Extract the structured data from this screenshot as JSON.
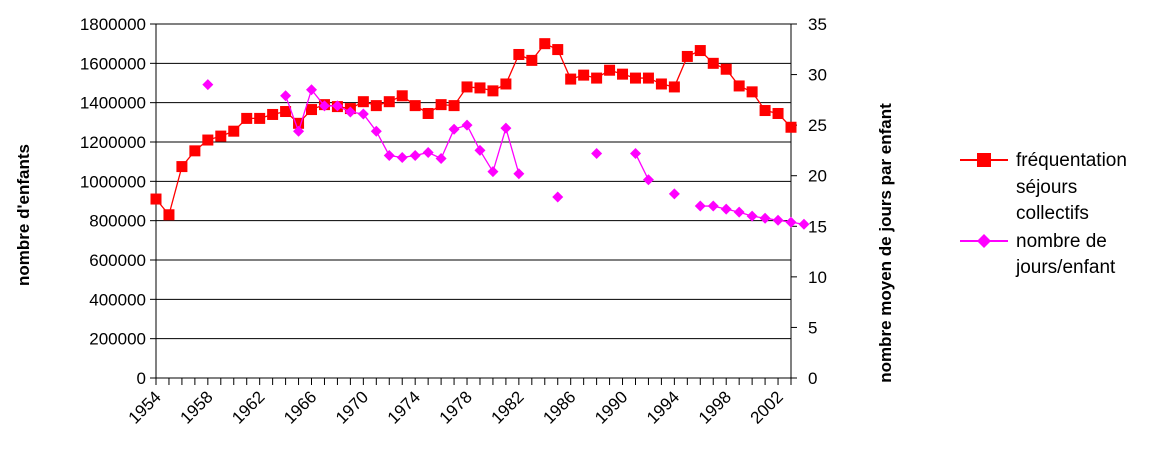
{
  "chart_data": {
    "type": "line",
    "x": [
      1954,
      1955,
      1956,
      1957,
      1958,
      1959,
      1960,
      1961,
      1962,
      1963,
      1964,
      1965,
      1966,
      1967,
      1968,
      1969,
      1970,
      1971,
      1972,
      1973,
      1974,
      1975,
      1976,
      1977,
      1978,
      1979,
      1980,
      1981,
      1982,
      1983,
      1984,
      1985,
      1986,
      1987,
      1988,
      1989,
      1990,
      1991,
      1992,
      1993,
      1994,
      1995,
      1996,
      1997,
      1998,
      1999,
      2000,
      2001,
      2002,
      2003
    ],
    "x_tick_labels": [
      "1954",
      "1958",
      "1962",
      "1966",
      "1970",
      "1974",
      "1978",
      "1982",
      "1986",
      "1990",
      "1994",
      "1998",
      "2002"
    ],
    "x_tick_values": [
      1954,
      1958,
      1962,
      1966,
      1970,
      1974,
      1978,
      1982,
      1986,
      1990,
      1994,
      1998,
      2002
    ],
    "xlim": [
      1954,
      2003
    ],
    "y_left": {
      "label": "nombre d'enfants",
      "lim": [
        0,
        1800000
      ],
      "ticks": [
        0,
        200000,
        400000,
        600000,
        800000,
        1000000,
        1200000,
        1400000,
        1600000,
        1800000
      ],
      "tick_labels": [
        "0",
        "200000",
        "400000",
        "600000",
        "800000",
        "1000000",
        "1200000",
        "1400000",
        "1600000",
        "1800000"
      ]
    },
    "y_right": {
      "label": "nombre moyen de jours par enfant",
      "lim": [
        0,
        35
      ],
      "ticks": [
        0,
        5,
        10,
        15,
        20,
        25,
        30,
        35
      ],
      "tick_labels": [
        "0",
        "5",
        "10",
        "15",
        "20",
        "25",
        "30",
        "35"
      ]
    },
    "grid": "horizontal",
    "legend_position": "right",
    "series": [
      {
        "name": "fréquentation séjours collectifs",
        "axis": "left",
        "color": "#ff0000",
        "marker": "square",
        "points": [
          [
            1954,
            910000
          ],
          [
            1955,
            830000
          ],
          [
            1956,
            1075000
          ],
          [
            1957,
            1155000
          ],
          [
            1958,
            1210000
          ],
          [
            1959,
            1230000
          ],
          [
            1960,
            1255000
          ],
          [
            1961,
            1320000
          ],
          [
            1962,
            1320000
          ],
          [
            1963,
            1340000
          ],
          [
            1964,
            1355000
          ],
          [
            1965,
            1295000
          ],
          [
            1966,
            1365000
          ],
          [
            1967,
            1390000
          ],
          [
            1968,
            1380000
          ],
          [
            1969,
            1370000
          ],
          [
            1970,
            1405000
          ],
          [
            1971,
            1385000
          ],
          [
            1972,
            1405000
          ],
          [
            1973,
            1435000
          ],
          [
            1974,
            1385000
          ],
          [
            1975,
            1345000
          ],
          [
            1976,
            1390000
          ],
          [
            1977,
            1385000
          ],
          [
            1978,
            1480000
          ],
          [
            1979,
            1475000
          ],
          [
            1980,
            1460000
          ],
          [
            1981,
            1495000
          ],
          [
            1982,
            1645000
          ],
          [
            1983,
            1615000
          ],
          [
            1984,
            1700000
          ],
          [
            1985,
            1670000
          ],
          [
            1986,
            1520000
          ],
          [
            1987,
            1540000
          ],
          [
            1988,
            1525000
          ],
          [
            1989,
            1565000
          ],
          [
            1990,
            1545000
          ],
          [
            1991,
            1525000
          ],
          [
            1992,
            1525000
          ],
          [
            1993,
            1495000
          ],
          [
            1994,
            1480000
          ],
          [
            1995,
            1635000
          ],
          [
            1996,
            1665000
          ],
          [
            1997,
            1600000
          ],
          [
            1998,
            1570000
          ],
          [
            1999,
            1485000
          ],
          [
            2000,
            1455000
          ],
          [
            2001,
            1360000
          ],
          [
            2002,
            1345000
          ],
          [
            2003,
            1275000
          ]
        ]
      },
      {
        "name": "nombre de jours/enfant",
        "axis": "right",
        "color": "#ff00ff",
        "marker": "diamond",
        "segments": [
          [
            [
              1958,
              29.0
            ]
          ],
          [
            [
              1964,
              27.9
            ],
            [
              1965,
              24.4
            ],
            [
              1966,
              28.5
            ],
            [
              1967,
              26.9
            ],
            [
              1968,
              26.9
            ],
            [
              1969,
              26.3
            ],
            [
              1970,
              26.1
            ],
            [
              1971,
              24.4
            ],
            [
              1972,
              22.0
            ],
            [
              1973,
              21.8
            ],
            [
              1974,
              22.0
            ],
            [
              1975,
              22.3
            ],
            [
              1976,
              21.7
            ],
            [
              1977,
              24.6
            ],
            [
              1978,
              25.0
            ],
            [
              1979,
              22.5
            ],
            [
              1980,
              20.4
            ],
            [
              1981,
              24.7
            ],
            [
              1982,
              20.2
            ]
          ],
          [
            [
              1985,
              17.9
            ]
          ],
          [
            [
              1988,
              22.2
            ]
          ],
          [
            [
              1991,
              22.2
            ],
            [
              1992,
              19.6
            ],
            [
              1993,
              null
            ],
            [
              1994,
              18.2
            ]
          ],
          [
            [
              1996,
              17.0
            ],
            [
              1997,
              17.0
            ],
            [
              1998,
              16.7
            ],
            [
              1999,
              16.4
            ],
            [
              2000,
              16.0
            ],
            [
              2001,
              15.8
            ],
            [
              2002,
              15.6
            ],
            [
              2003,
              15.4
            ],
            [
              2004,
              15.2
            ]
          ]
        ]
      }
    ]
  },
  "legend": {
    "items": [
      {
        "lines": [
          "fréquentation",
          "séjours",
          "collectifs"
        ],
        "color": "#ff0000",
        "marker": "square"
      },
      {
        "lines": [
          "nombre de",
          "jours/enfant"
        ],
        "color": "#ff00ff",
        "marker": "diamond"
      }
    ]
  }
}
